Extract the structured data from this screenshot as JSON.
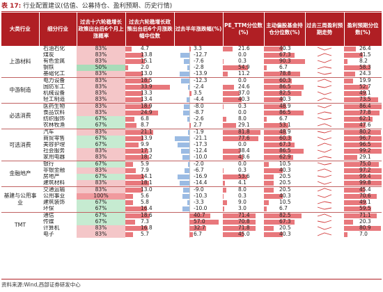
{
  "title": {
    "label": "表 17:",
    "text": "行业配置建议(估值、公募持仓、盈利预期、历史行情)"
  },
  "source": "资料来源:Wind,西部证券研发中心",
  "colors": {
    "header": "#b01f24",
    "positive": "#e8787c",
    "negative": "#9bbbe3",
    "green": "#8bd1a3",
    "pink": "#f4c6c8",
    "trend": "#d23a3a"
  },
  "headers": [
    "大类行业",
    "细分行业",
    "过去十六轮稳增长政策出台后6个月上涨概率",
    "过去六轮稳增长政策出台后6个月涨跌幅中位数",
    "过去半年涨跌幅(%)",
    "PE_TTM分位数(%)",
    "主动偏股基金持仓分位数(%)",
    "过去三周盈利预期走势",
    "盈利预期分位数(%)"
  ],
  "groups": [
    {
      "name": "上游材料",
      "rows": [
        {
          "industry": "石油石化",
          "prob": "83%",
          "median": 4.7,
          "chg6m": 3.3,
          "pe": 21.6,
          "hold": 40.3,
          "eps": 26.4
        },
        {
          "industry": "煤炭",
          "prob": "83%",
          "median": 13.8,
          "chg6m": -12.7,
          "pe": 0.0,
          "hold": 67.3,
          "eps": 41.5
        },
        {
          "industry": "有色金属",
          "prob": "83%",
          "median": 15.1,
          "chg6m": -7.6,
          "pe": 0.3,
          "hold": 90.3,
          "eps": 8.2
        },
        {
          "industry": "钢铁",
          "prob": "50%",
          "median": 2.0,
          "chg6m": -2.8,
          "pe": 54.9,
          "hold": 6.7,
          "eps": 58.3
        },
        {
          "industry": "基础化工",
          "prob": "83%",
          "median": 13.0,
          "chg6m": -13.9,
          "pe": 11.2,
          "hold": 78.8,
          "eps": 24.3
        }
      ]
    },
    {
      "name": "中游制造",
      "rows": [
        {
          "industry": "电力设备",
          "prob": "83%",
          "median": 18.5,
          "chg6m": -12.3,
          "pe": 0.0,
          "hold": 60.3,
          "eps": 19.9
        },
        {
          "industry": "国防军工",
          "prob": "83%",
          "median": 33.9,
          "chg6m": -2.4,
          "pe": 24.6,
          "hold": 86.5,
          "eps": 52.7
        },
        {
          "industry": "机械设备",
          "prob": "83%",
          "median": 13.3,
          "chg6m": 3.5,
          "pe": 37.0,
          "hold": 82.5,
          "eps": 49.1
        },
        {
          "industry": "轻工制造",
          "prob": "83%",
          "median": 13.4,
          "chg6m": -4.4,
          "pe": 40.3,
          "hold": 40.3,
          "eps": 73.5
        }
      ]
    },
    {
      "name": "必选消费",
      "rows": [
        {
          "industry": "医药生物",
          "prob": "83%",
          "median": 18.9,
          "chg6m": -8.0,
          "pe": 0.3,
          "hold": 48.9,
          "eps": 86.4
        },
        {
          "industry": "食品饮料",
          "prob": "83%",
          "median": 24.9,
          "chg6m": -8.7,
          "pe": 0.0,
          "hold": 86.5,
          "eps": 77.8
        },
        {
          "industry": "纺织服饰",
          "prob": "67%",
          "median": 6.8,
          "chg6m": -2.6,
          "pe": 8.0,
          "hold": 6.7,
          "eps": 62.1
        },
        {
          "industry": "农林牧渔",
          "prob": "67%",
          "median": 8.7,
          "chg6m": 2.7,
          "pe": 29.1,
          "hold": 53.1,
          "eps": 47.6
        }
      ]
    },
    {
      "name": "可选消费",
      "rows": [
        {
          "industry": "汽车",
          "prob": "83%",
          "median": 21.1,
          "chg6m": -1.9,
          "pe": 81.8,
          "hold": 48.9,
          "eps": 80.2
        },
        {
          "industry": "商贸零售",
          "prob": "67%",
          "median": 13.9,
          "chg6m": -21.1,
          "pe": 77.6,
          "hold": 60.3,
          "eps": 96.7
        },
        {
          "industry": "美容护理",
          "prob": "67%",
          "median": 9.9,
          "chg6m": -17.3,
          "pe": 0.0,
          "hold": 67.3,
          "eps": 96.5
        },
        {
          "industry": "社会服务",
          "prob": "83%",
          "median": 17.3,
          "chg6m": -12.4,
          "pe": 38.4,
          "hold": 86.5,
          "eps": 99.2
        },
        {
          "industry": "家用电器",
          "prob": "83%",
          "median": 18.2,
          "chg6m": -10.0,
          "pe": 43.6,
          "hold": 62.9,
          "eps": 29.1
        }
      ]
    },
    {
      "name": "金融地产",
      "rows": [
        {
          "industry": "银行",
          "prob": "67%",
          "median": 5.9,
          "chg6m": -2.0,
          "pe": 0.0,
          "hold": 10.5,
          "eps": 75.0
        },
        {
          "industry": "非银金融",
          "prob": "83%",
          "median": 7.9,
          "chg6m": -6.7,
          "pe": 0.3,
          "hold": 40.3,
          "eps": 97.2
        },
        {
          "industry": "房地产",
          "prob": "67%",
          "median": 14.1,
          "chg6m": -16.9,
          "pe": 53.6,
          "hold": 20.5,
          "eps": 99.4
        },
        {
          "industry": "建筑材料",
          "prob": "83%",
          "median": 18.1,
          "chg6m": -14.4,
          "pe": 4.1,
          "hold": 20.5,
          "eps": 99.8
        }
      ]
    },
    {
      "name": "基建与公用事业",
      "rows": [
        {
          "industry": "交通运输",
          "prob": "83%",
          "median": 13.0,
          "chg6m": -9.0,
          "pe": 8.0,
          "hold": 20.5,
          "eps": 45.4
        },
        {
          "industry": "公用事业",
          "prob": "100%",
          "median": 5.6,
          "chg6m": -10.3,
          "pe": 0.3,
          "hold": 40.3,
          "eps": 70.6
        },
        {
          "industry": "建筑装饰",
          "prob": "67%",
          "median": 5.8,
          "chg6m": -3.3,
          "pe": 9.0,
          "hold": 10.5,
          "eps": 49.1
        },
        {
          "industry": "环保",
          "prob": "67%",
          "median": 16.4,
          "chg6m": -10.0,
          "pe": 3.0,
          "hold": 6.7,
          "eps": 59.5
        }
      ]
    },
    {
      "name": "TMT",
      "rows": [
        {
          "industry": "通信",
          "prob": "67%",
          "median": 18.6,
          "chg6m": 40.7,
          "pe": 71.4,
          "hold": 82.5,
          "eps": 71.1
        },
        {
          "industry": "传媒",
          "prob": "67%",
          "median": 7.3,
          "chg6m": 57.0,
          "pe": 70.8,
          "hold": 67.3,
          "eps": 20.3
        },
        {
          "industry": "计算机",
          "prob": "83%",
          "median": 16.8,
          "chg6m": 32.7,
          "pe": 71.8,
          "hold": 20.5,
          "eps": 80.9
        },
        {
          "industry": "电子",
          "prob": "83%",
          "median": 5.7,
          "chg6m": 6.7,
          "pe": 45.0,
          "hold": 40.3,
          "eps": 7.0
        }
      ]
    }
  ]
}
